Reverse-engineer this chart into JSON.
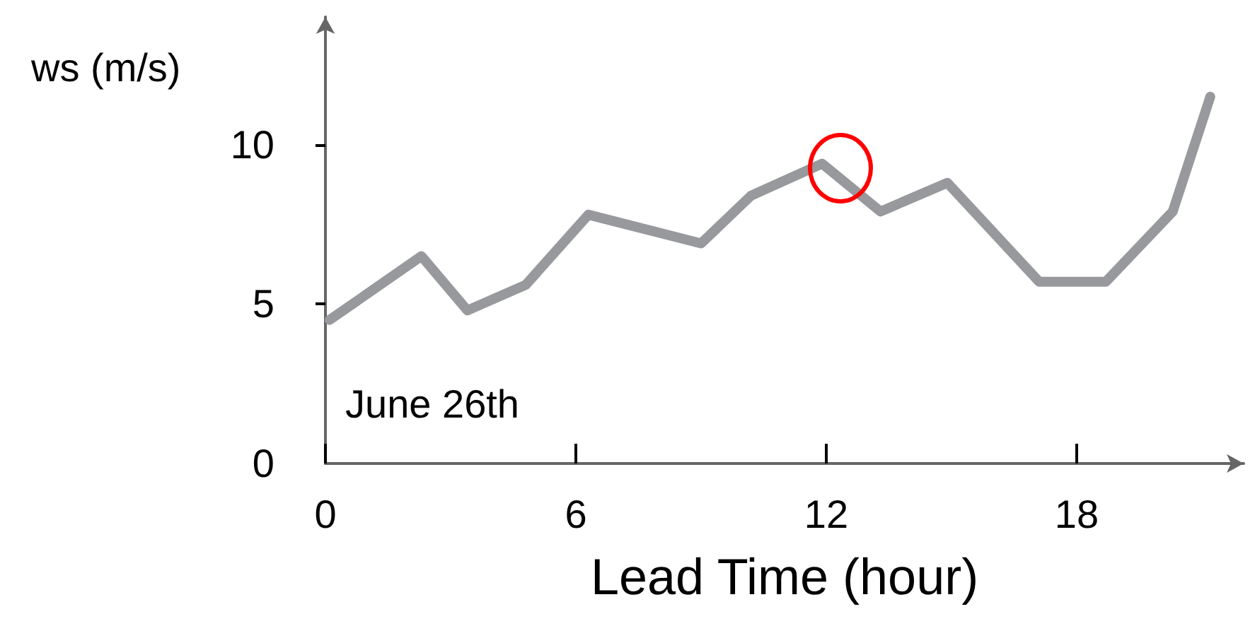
{
  "chart_data": {
    "type": "line",
    "xlabel": "Lead Time (hour)",
    "ylabel": "ws (m/s)",
    "x": [
      0.1,
      2.3,
      3.4,
      4.8,
      6.3,
      9.0,
      10.2,
      11.9,
      13.3,
      14.9,
      17.1,
      18.7,
      20.3,
      21.2
    ],
    "series": [
      {
        "color": "#98999c",
        "values": [
          4.5,
          6.5,
          4.8,
          5.6,
          7.8,
          6.9,
          8.4,
          9.4,
          7.9,
          8.8,
          5.7,
          5.7,
          7.9,
          11.5
        ]
      }
    ],
    "xlim": [
      0,
      22
    ],
    "xticks": [
      0,
      6,
      12,
      18
    ],
    "ylim": [
      0,
      14
    ],
    "yticks": [
      0,
      5,
      10
    ],
    "annotations": [
      "June 26th"
    ],
    "grid": false,
    "marker": "none",
    "line_style": "solid"
  }
}
